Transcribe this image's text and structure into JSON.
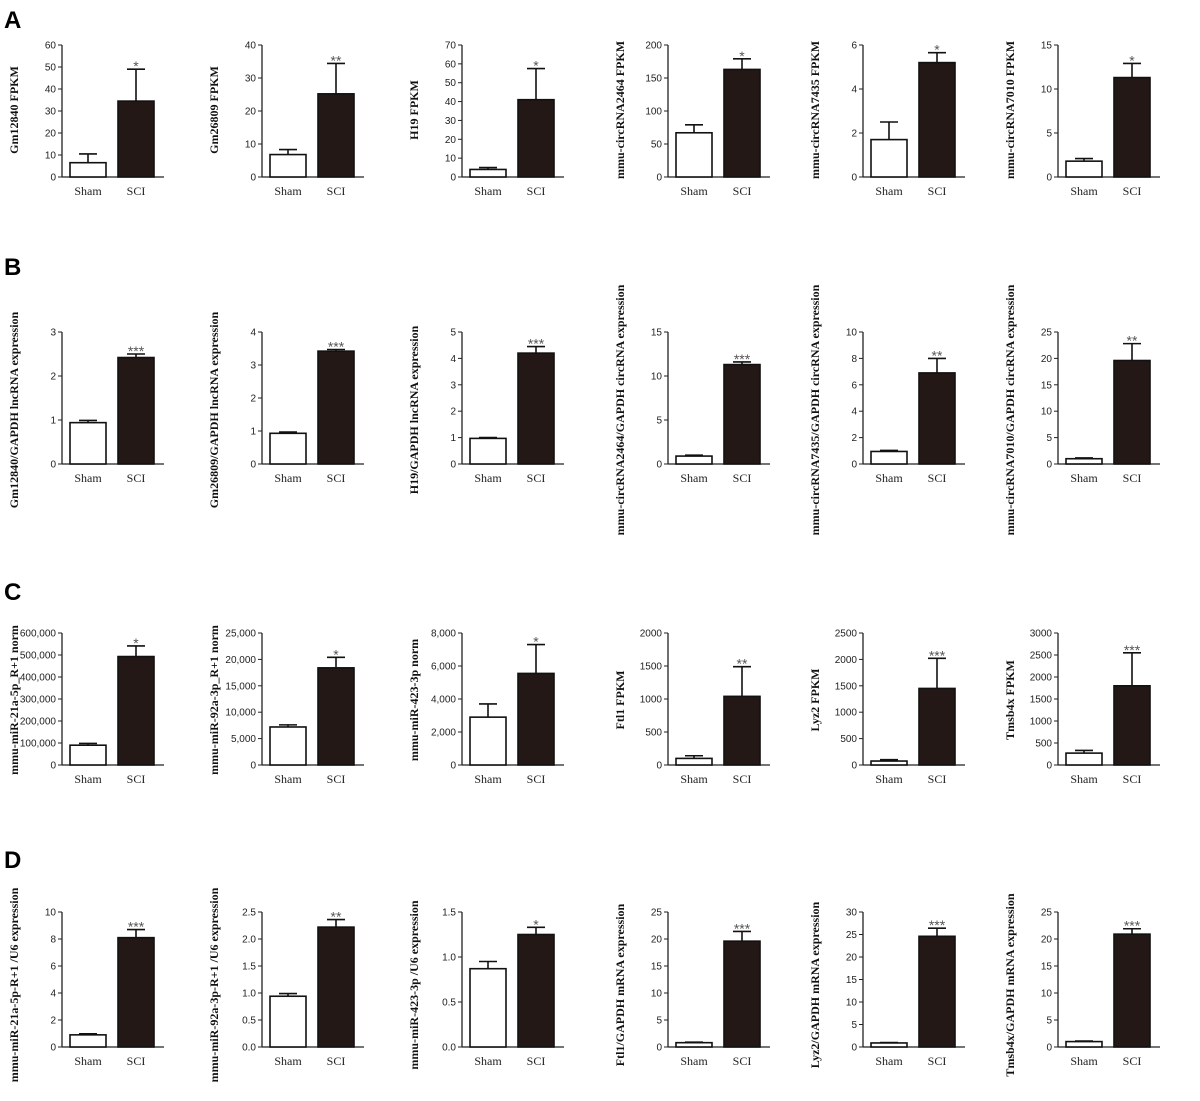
{
  "chart_data": {
    "type": "bar",
    "categories": [
      "Sham",
      "SCI"
    ],
    "colors": {
      "Sham": "#ffffff",
      "SCI": "#231815",
      "axis": "#222222"
    },
    "error_bars": "mean + SEM (upper only)",
    "rows": [
      {
        "letter": "A",
        "panels": [
          {
            "ylabel": "Gm12840 FPKM",
            "ticks": [
              "0",
              "10",
              "20",
              "30",
              "40",
              "50",
              "60"
            ],
            "ylim": [
              0,
              60
            ],
            "values": [
              6.5,
              34.5
            ],
            "errors": [
              4,
              14.5
            ],
            "sig": "*"
          },
          {
            "ylabel": "Gm26809 FPKM",
            "ticks": [
              "0",
              "10",
              "20",
              "30",
              "40"
            ],
            "ylim": [
              0,
              40
            ],
            "values": [
              6.8,
              25.2
            ],
            "errors": [
              1.5,
              9.2
            ],
            "sig": "**"
          },
          {
            "ylabel": "H19 FPKM",
            "ticks": [
              "0",
              "10",
              "20",
              "30",
              "40",
              "50",
              "60",
              "70"
            ],
            "ylim": [
              0,
              70
            ],
            "values": [
              4,
              41
            ],
            "errors": [
              1,
              16.5
            ],
            "sig": "*"
          },
          {
            "ylabel": "mmu-circRNA2464 FPKM",
            "ticks": [
              "0",
              "50",
              "100",
              "150",
              "200"
            ],
            "ylim": [
              0,
              200
            ],
            "values": [
              67,
              163
            ],
            "errors": [
              12,
              16
            ],
            "sig": "*"
          },
          {
            "ylabel": "mmu-circRNA7435 FPKM",
            "ticks": [
              "0",
              "2",
              "4",
              "6"
            ],
            "ylim": [
              0,
              6
            ],
            "values": [
              1.7,
              5.2
            ],
            "errors": [
              0.8,
              0.45
            ],
            "sig": "*"
          },
          {
            "ylabel": "mmu-circRNA7010 FPKM",
            "ticks": [
              "0",
              "5",
              "10",
              "15"
            ],
            "ylim": [
              0,
              15
            ],
            "values": [
              1.8,
              11.3
            ],
            "errors": [
              0.3,
              1.6
            ],
            "sig": "*"
          }
        ]
      },
      {
        "letter": "B",
        "panels": [
          {
            "ylabel": "Gm12840/GAPDH lncRNA expression",
            "ticks": [
              "0",
              "1",
              "2",
              "3"
            ],
            "ylim": [
              0,
              3
            ],
            "values": [
              0.94,
              2.42
            ],
            "errors": [
              0.05,
              0.08
            ],
            "sig": "***"
          },
          {
            "ylabel": "Gm26809/GAPDH lncRNA expression",
            "ticks": [
              "0",
              "1",
              "2",
              "3",
              "4"
            ],
            "ylim": [
              0,
              4
            ],
            "values": [
              0.93,
              3.42
            ],
            "errors": [
              0.04,
              0.05
            ],
            "sig": "***"
          },
          {
            "ylabel": "H19/GAPDH lncRNA expression",
            "ticks": [
              "0",
              "1",
              "2",
              "3",
              "4",
              "5"
            ],
            "ylim": [
              0,
              5
            ],
            "values": [
              0.97,
              4.2
            ],
            "errors": [
              0.03,
              0.25
            ],
            "sig": "***"
          },
          {
            "ylabel": "mmu-circRNA2464/GAPDH circRNA expression",
            "ticks": [
              "0",
              "5",
              "10",
              "15"
            ],
            "ylim": [
              0,
              15
            ],
            "values": [
              0.9,
              11.3
            ],
            "errors": [
              0.1,
              0.3
            ],
            "sig": "***"
          },
          {
            "ylabel": "mmu-circRNA7435/GAPDH circRNA expression",
            "ticks": [
              "0",
              "2",
              "4",
              "6",
              "8",
              "10"
            ],
            "ylim": [
              0,
              10
            ],
            "values": [
              0.95,
              6.9
            ],
            "errors": [
              0.08,
              1.1
            ],
            "sig": "**"
          },
          {
            "ylabel": "mmu-circRNA7010/GAPDH circRNA expression",
            "ticks": [
              "0",
              "5",
              "10",
              "15",
              "20",
              "25"
            ],
            "ylim": [
              0,
              25
            ],
            "values": [
              1.0,
              19.6
            ],
            "errors": [
              0.15,
              3.2
            ],
            "sig": "**"
          }
        ]
      },
      {
        "letter": "C",
        "panels": [
          {
            "ylabel": "mmu-miR-21a-5p_R+1 norm",
            "ticks": [
              "0",
              "100,000",
              "200,000",
              "300,000",
              "400,000",
              "500,000",
              "600,000"
            ],
            "ylim": [
              0,
              600000
            ],
            "values": [
              90000,
              493000
            ],
            "errors": [
              8000,
              48000
            ],
            "sig": "*"
          },
          {
            "ylabel": "mmu-miR-92a-3p_R+1 norm",
            "ticks": [
              "0",
              "5,000",
              "10,000",
              "15,000",
              "20,000",
              "25,000"
            ],
            "ylim": [
              0,
              25000
            ],
            "values": [
              7200,
              18400
            ],
            "errors": [
              400,
              2000
            ],
            "sig": "*"
          },
          {
            "ylabel": "mmu-miR-423-3p norm",
            "ticks": [
              "0",
              "2,000",
              "4,000",
              "6,000",
              "8,000"
            ],
            "ylim": [
              0,
              8000
            ],
            "values": [
              2900,
              5550
            ],
            "errors": [
              800,
              1750
            ],
            "sig": "*"
          },
          {
            "ylabel": "Ftl1 FPKM",
            "ticks": [
              "0",
              "500",
              "1000",
              "1500",
              "2000"
            ],
            "ylim": [
              0,
              2000
            ],
            "values": [
              100,
              1040
            ],
            "errors": [
              40,
              450
            ],
            "sig": "**"
          },
          {
            "ylabel": "Lyz2 FPKM",
            "ticks": [
              "0",
              "500",
              "1000",
              "1500",
              "2000",
              "2500"
            ],
            "ylim": [
              0,
              2500
            ],
            "values": [
              75,
              1450
            ],
            "errors": [
              25,
              570
            ],
            "sig": "***"
          },
          {
            "ylabel": "Tmsb4x FPKM",
            "ticks": [
              "0",
              "500",
              "1000",
              "1500",
              "2000",
              "2500",
              "3000"
            ],
            "ylim": [
              0,
              3000
            ],
            "values": [
              270,
              1800
            ],
            "errors": [
              60,
              750
            ],
            "sig": "***"
          }
        ]
      },
      {
        "letter": "D",
        "panels": [
          {
            "ylabel": "mmu-miR-21a-5p-R+1 /U6 expression",
            "ticks": [
              "0",
              "2",
              "4",
              "6",
              "8",
              "10"
            ],
            "ylim": [
              0,
              10
            ],
            "values": [
              0.9,
              8.1
            ],
            "errors": [
              0.08,
              0.6
            ],
            "sig": "***"
          },
          {
            "ylabel": "mmu-miR-92a-3p-R+1 /U6 expression",
            "ticks": [
              "0.0",
              "0.5",
              "1.0",
              "1.5",
              "2.0",
              "2.5"
            ],
            "ylim": [
              0,
              2.5
            ],
            "values": [
              0.94,
              2.22
            ],
            "errors": [
              0.05,
              0.14
            ],
            "sig": "**"
          },
          {
            "ylabel": "mmu-miR-423-3p /U6 expression",
            "ticks": [
              "0.0",
              "0.5",
              "1.0",
              "1.5"
            ],
            "ylim": [
              0,
              1.5
            ],
            "values": [
              0.87,
              1.25
            ],
            "errors": [
              0.08,
              0.08
            ],
            "sig": "*"
          },
          {
            "ylabel": "Ftl1/GAPDH mRNA expression",
            "ticks": [
              "0",
              "5",
              "10",
              "15",
              "20",
              "25"
            ],
            "ylim": [
              0,
              25
            ],
            "values": [
              0.8,
              19.6
            ],
            "errors": [
              0.1,
              1.8
            ],
            "sig": "***"
          },
          {
            "ylabel": "Lyz2/GAPDH mRNA expression",
            "ticks": [
              "0",
              "5",
              "10",
              "15",
              "20",
              "25",
              "30"
            ],
            "ylim": [
              0,
              30
            ],
            "values": [
              0.9,
              24.6
            ],
            "errors": [
              0.1,
              1.8
            ],
            "sig": "***"
          },
          {
            "ylabel": "Tmsb4x/GAPDH mRNA expression",
            "ticks": [
              "0",
              "5",
              "10",
              "15",
              "20",
              "25"
            ],
            "ylim": [
              0,
              25
            ],
            "values": [
              1.0,
              20.9
            ],
            "errors": [
              0.1,
              1.0
            ],
            "sig": "***"
          }
        ]
      }
    ]
  }
}
